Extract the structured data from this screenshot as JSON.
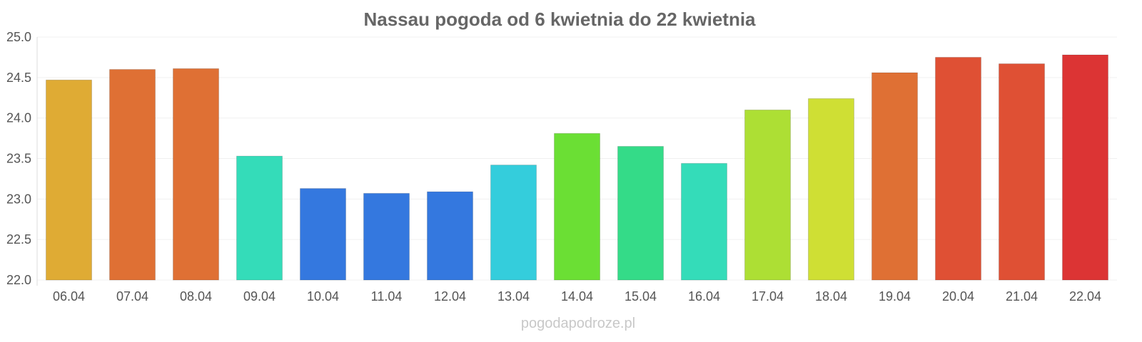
{
  "chart_data": {
    "type": "bar",
    "title": "Nassau pogoda od 6 kwietnia do 22 kwietnia",
    "xlabel": "",
    "ylabel": "",
    "ylim": [
      22.0,
      25.0
    ],
    "yticks": [
      "22.0",
      "22.5",
      "23.0",
      "23.5",
      "24.0",
      "24.5",
      "25.0"
    ],
    "grid": true,
    "categories": [
      "06.04",
      "07.04",
      "08.04",
      "09.04",
      "10.04",
      "11.04",
      "12.04",
      "13.04",
      "14.04",
      "15.04",
      "16.04",
      "17.04",
      "18.04",
      "19.04",
      "20.04",
      "21.04",
      "22.04"
    ],
    "values": [
      24.47,
      24.6,
      24.61,
      23.53,
      23.13,
      23.07,
      23.09,
      23.42,
      23.81,
      23.65,
      23.44,
      24.1,
      24.24,
      24.56,
      24.75,
      24.67,
      24.78
    ],
    "colors": [
      "#dfab34",
      "#df7034",
      "#df7034",
      "#34dcb9",
      "#3478df",
      "#3478df",
      "#3478df",
      "#34cddc",
      "#6bdf34",
      "#34db88",
      "#34dcb9",
      "#addf34",
      "#cfdf34",
      "#df7034",
      "#df5034",
      "#df5034",
      "#dc3434"
    ]
  },
  "watermark": "pogodapodroze.pl"
}
